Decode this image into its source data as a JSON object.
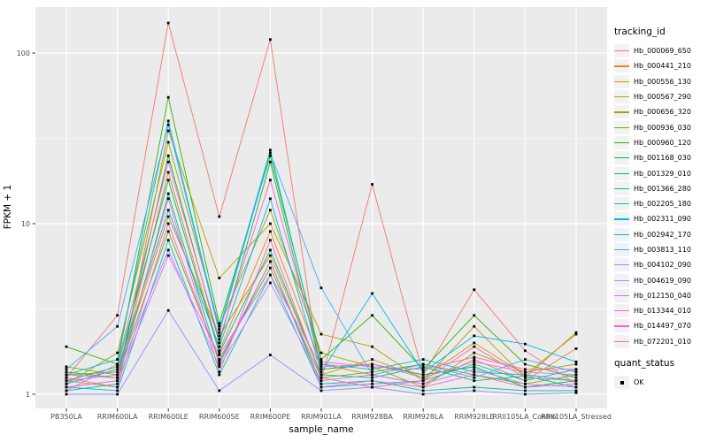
{
  "figure": {
    "panel_bg": "#EBEBEB",
    "grid_color": "#FFFFFF",
    "tick_color": "#333333",
    "tick_label_color": "#4D4D4D",
    "axis_title_color": "#000000",
    "point_color": "#000000",
    "legend_key_bg": "#F2F2F2"
  },
  "chart_data": {
    "type": "line",
    "xlabel": "sample_name",
    "ylabel": "FPKM + 1",
    "y_scale": "log10",
    "y_ticks": [
      1,
      10,
      100
    ],
    "ylim": [
      0.83,
      180
    ],
    "grid": true,
    "legend_position": "right",
    "legend_title": "tracking_id",
    "categories": [
      "PB350LA",
      "RRIM600LA",
      "RRIM600LE",
      "RRIM600SE",
      "RRIM600PE",
      "RRIM901LA",
      "RRIM928BA",
      "RRIM928LA",
      "RRIM928LE",
      "RRII105LA_Control",
      "RRII105LA_Stressed"
    ],
    "series": [
      {
        "name": "Hb_000069_650",
        "color": "#F8766D",
        "values": [
          1.25,
          2.9,
          150,
          11,
          120,
          1.2,
          17,
          1.3,
          4.1,
          1.8,
          1.15
        ]
      },
      {
        "name": "Hb_000441_210",
        "color": "#E88526",
        "values": [
          1.1,
          1.2,
          20,
          1.8,
          9,
          1.5,
          1.3,
          1.15,
          1.6,
          1.2,
          1.85
        ]
      },
      {
        "name": "Hb_000556_130",
        "color": "#D39200",
        "values": [
          1.3,
          1.35,
          11,
          2.2,
          6.5,
          1.3,
          1.6,
          1.25,
          2.0,
          1.3,
          2.25
        ]
      },
      {
        "name": "Hb_000567_290",
        "color": "#BB9D00",
        "values": [
          1.2,
          1.1,
          35,
          4.8,
          10,
          2.25,
          1.9,
          1.2,
          2.5,
          1.25,
          2.3
        ]
      },
      {
        "name": "Hb_000656_320",
        "color": "#9DA700",
        "values": [
          1.15,
          1.75,
          30,
          2.5,
          12,
          1.75,
          1.45,
          1.1,
          1.75,
          1.35,
          1.5
        ]
      },
      {
        "name": "Hb_000936_030",
        "color": "#75AF00",
        "values": [
          1.45,
          1.3,
          9,
          1.6,
          5.5,
          1.25,
          1.35,
          1.5,
          1.3,
          1.15,
          1.3
        ]
      },
      {
        "name": "Hb_000960_120",
        "color": "#2BB600",
        "values": [
          1.9,
          1.5,
          55,
          2.6,
          25,
          1.6,
          2.9,
          1.4,
          2.9,
          1.5,
          1.25
        ]
      },
      {
        "name": "Hb_001168_030",
        "color": "#00BA42",
        "values": [
          1.35,
          1.25,
          25,
          2.0,
          23,
          1.4,
          1.5,
          1.3,
          1.45,
          1.1,
          1.2
        ]
      },
      {
        "name": "Hb_001329_010",
        "color": "#00BD74",
        "values": [
          1.2,
          1.45,
          18,
          1.75,
          7,
          1.3,
          1.25,
          1.45,
          1.2,
          1.28,
          1.1
        ]
      },
      {
        "name": "Hb_001366_280",
        "color": "#00BF9B",
        "values": [
          1.05,
          1.15,
          15,
          1.5,
          6,
          1.15,
          1.2,
          1.05,
          1.1,
          1.05,
          1.05
        ]
      },
      {
        "name": "Hb_002205_180",
        "color": "#00BFC0",
        "values": [
          1.1,
          1.05,
          8,
          1.3,
          5,
          1.1,
          1.15,
          1.2,
          1.5,
          1.2,
          1.4
        ]
      },
      {
        "name": "Hb_002311_090",
        "color": "#00BCDD",
        "values": [
          1.3,
          1.6,
          40,
          2.4,
          27,
          1.5,
          1.4,
          1.6,
          1.35,
          1.3,
          1.2
        ]
      },
      {
        "name": "Hb_002942_170",
        "color": "#00B5F2",
        "values": [
          1.15,
          1.4,
          12,
          1.9,
          14,
          1.35,
          3.9,
          1.35,
          2.2,
          1.97,
          1.55
        ]
      },
      {
        "name": "Hb_003813_110",
        "color": "#47A8FF",
        "values": [
          1.4,
          2.5,
          38,
          2.3,
          26,
          4.2,
          1.3,
          1.5,
          1.25,
          1.6,
          1.35
        ]
      },
      {
        "name": "Hb_004102_090",
        "color": "#8F91FF",
        "values": [
          1.0,
          1.0,
          3.1,
          1.05,
          1.7,
          1.05,
          1.1,
          1.0,
          1.05,
          1.0,
          1.02
        ]
      },
      {
        "name": "Hb_004619_090",
        "color": "#BC81FF",
        "values": [
          1.2,
          1.3,
          7,
          1.45,
          4.5,
          1.2,
          1.3,
          1.15,
          1.4,
          1.15,
          1.1
        ]
      },
      {
        "name": "Hb_012150_040",
        "color": "#DC71FA",
        "values": [
          1.1,
          1.2,
          6.5,
          1.7,
          5,
          1.45,
          1.5,
          1.25,
          1.55,
          1.35,
          1.3
        ]
      },
      {
        "name": "Hb_013344_010",
        "color": "#F066E8",
        "values": [
          1.25,
          1.1,
          10,
          1.55,
          6,
          1.1,
          1.2,
          1.1,
          1.3,
          1.1,
          1.15
        ]
      },
      {
        "name": "Hb_014497_070",
        "color": "#FC61D1",
        "values": [
          1.05,
          1.5,
          23,
          2.1,
          18,
          1.55,
          1.45,
          1.4,
          1.65,
          1.4,
          1.4
        ]
      },
      {
        "name": "Hb_072201_010",
        "color": "#FF68B3",
        "values": [
          1.3,
          1.25,
          14,
          1.35,
          8,
          1.25,
          1.1,
          1.2,
          1.9,
          1.25,
          1.2
        ]
      }
    ],
    "quant_legend": {
      "title": "quant_status",
      "items": [
        {
          "label": "OK"
        }
      ]
    }
  }
}
